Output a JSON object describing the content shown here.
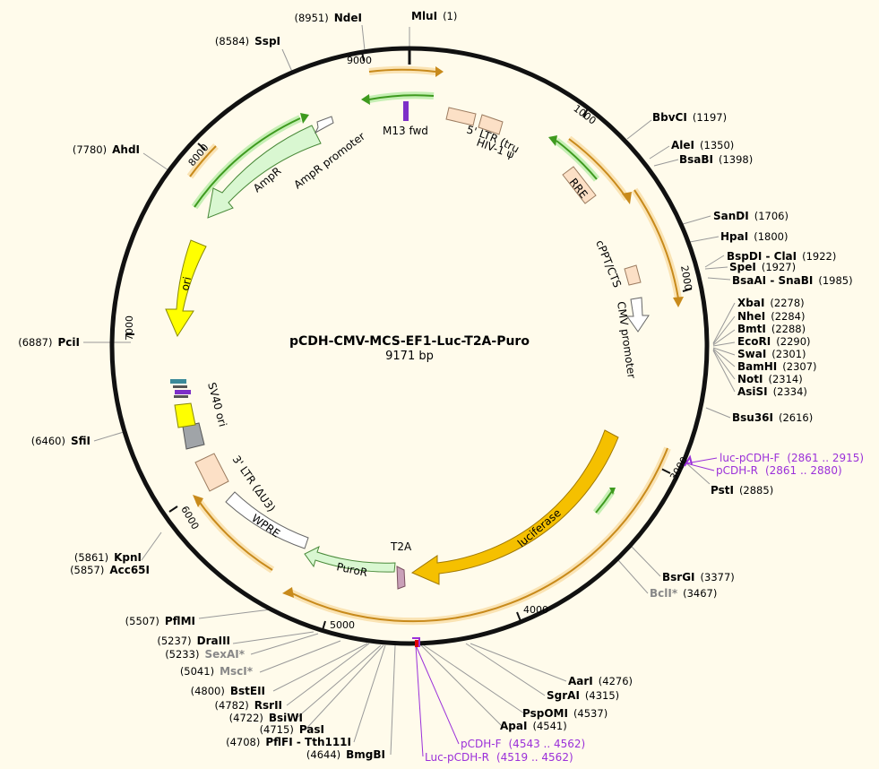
{
  "plasmid": {
    "name": "pCDH-CMV-MCS-EF1-Luc-T2A-Puro",
    "length": "9171 bp"
  },
  "colors": {
    "background": "#fffbeb",
    "backbone": "#111111",
    "orf": "#f0ad2e",
    "misc_arrow": "#4caf28",
    "amp": "#d9f7d1",
    "ori": "#ffff00",
    "luciferase": "#f5c000",
    "puror": "#d9f7d1",
    "ltr": "#fce0c6",
    "cmv": "#ffffff",
    "primer": "#9b30d9",
    "gray_feature": "#a0a4a8",
    "t2a": "#c9a0b8"
  },
  "ticks": [
    "1000",
    "2000",
    "3000",
    "4000",
    "5000",
    "6000",
    "7000",
    "8000",
    "9000"
  ],
  "features": {
    "m13fwd": "M13 fwd",
    "ltr5": "5' LTR (truncated)",
    "hiv": "HIV-1 ψ",
    "rre": "RRE",
    "cppt": "cPPT/CTS",
    "cmv": "CMV promoter",
    "luciferase": "luciferase",
    "t2a": "T2A",
    "puror": "PuroR",
    "wpre": "WPRE",
    "ltr3": "3' LTR (ΔU3)",
    "sv40": "SV40 ori",
    "ori": "ori",
    "ampr": "AmpR",
    "ampr_promoter": "AmpR promoter"
  },
  "sites": [
    {
      "name": "MluI",
      "pos": "(1)"
    },
    {
      "name": "NdeI",
      "pos": "(8951)"
    },
    {
      "name": "SspI",
      "pos": "(8584)"
    },
    {
      "name": "AhdI",
      "pos": "(7780)"
    },
    {
      "name": "PciI",
      "pos": "(6887)"
    },
    {
      "name": "SfiI",
      "pos": "(6460)"
    },
    {
      "name": "KpnI",
      "pos": "(5861)"
    },
    {
      "name": "Acc65I",
      "pos": "(5857)"
    },
    {
      "name": "PflMI",
      "pos": "(5507)"
    },
    {
      "name": "DraIII",
      "pos": "(5237)"
    },
    {
      "name": "SexAI*",
      "pos": "(5233)"
    },
    {
      "name": "MscI*",
      "pos": "(5041)"
    },
    {
      "name": "BstEII",
      "pos": "(4800)"
    },
    {
      "name": "RsrII",
      "pos": "(4782)"
    },
    {
      "name": "BsiWI",
      "pos": "(4722)"
    },
    {
      "name": "PasI",
      "pos": "(4715)"
    },
    {
      "name": "PflFI - Tth111I",
      "pos": "(4708)"
    },
    {
      "name": "BmgBI",
      "pos": "(4644)"
    },
    {
      "name": "BbvCI",
      "pos": "(1197)"
    },
    {
      "name": "AleI",
      "pos": "(1350)"
    },
    {
      "name": "BsaBI",
      "pos": "(1398)"
    },
    {
      "name": "SanDI",
      "pos": "(1706)"
    },
    {
      "name": "HpaI",
      "pos": "(1800)"
    },
    {
      "name": "BspDI - ClaI",
      "pos": "(1922)"
    },
    {
      "name": "SpeI",
      "pos": "(1927)"
    },
    {
      "name": "BsaAI - SnaBI",
      "pos": "(1985)"
    },
    {
      "name": "XbaI",
      "pos": "(2278)"
    },
    {
      "name": "NheI",
      "pos": "(2284)"
    },
    {
      "name": "BmtI",
      "pos": "(2288)"
    },
    {
      "name": "EcoRI",
      "pos": "(2290)"
    },
    {
      "name": "SwaI",
      "pos": "(2301)"
    },
    {
      "name": "BamHI",
      "pos": "(2307)"
    },
    {
      "name": "NotI",
      "pos": "(2314)"
    },
    {
      "name": "AsiSI",
      "pos": "(2334)"
    },
    {
      "name": "Bsu36I",
      "pos": "(2616)"
    },
    {
      "name": "PstI",
      "pos": "(2885)"
    },
    {
      "name": "BsrGI",
      "pos": "(3377)"
    },
    {
      "name": "BclI*",
      "pos": "(3467)"
    },
    {
      "name": "AarI",
      "pos": "(4276)"
    },
    {
      "name": "SgrAI",
      "pos": "(4315)"
    },
    {
      "name": "PspOMI",
      "pos": "(4537)"
    },
    {
      "name": "ApaI",
      "pos": "(4541)"
    }
  ],
  "primers": [
    {
      "name": "luc-pCDH-F",
      "range": "(2861 .. 2915)"
    },
    {
      "name": "pCDH-R",
      "range": "(2861 .. 2880)"
    },
    {
      "name": "pCDH-F",
      "range": "(4543 .. 4562)"
    },
    {
      "name": "Luc-pCDH-R",
      "range": "(4519 .. 4562)"
    }
  ]
}
